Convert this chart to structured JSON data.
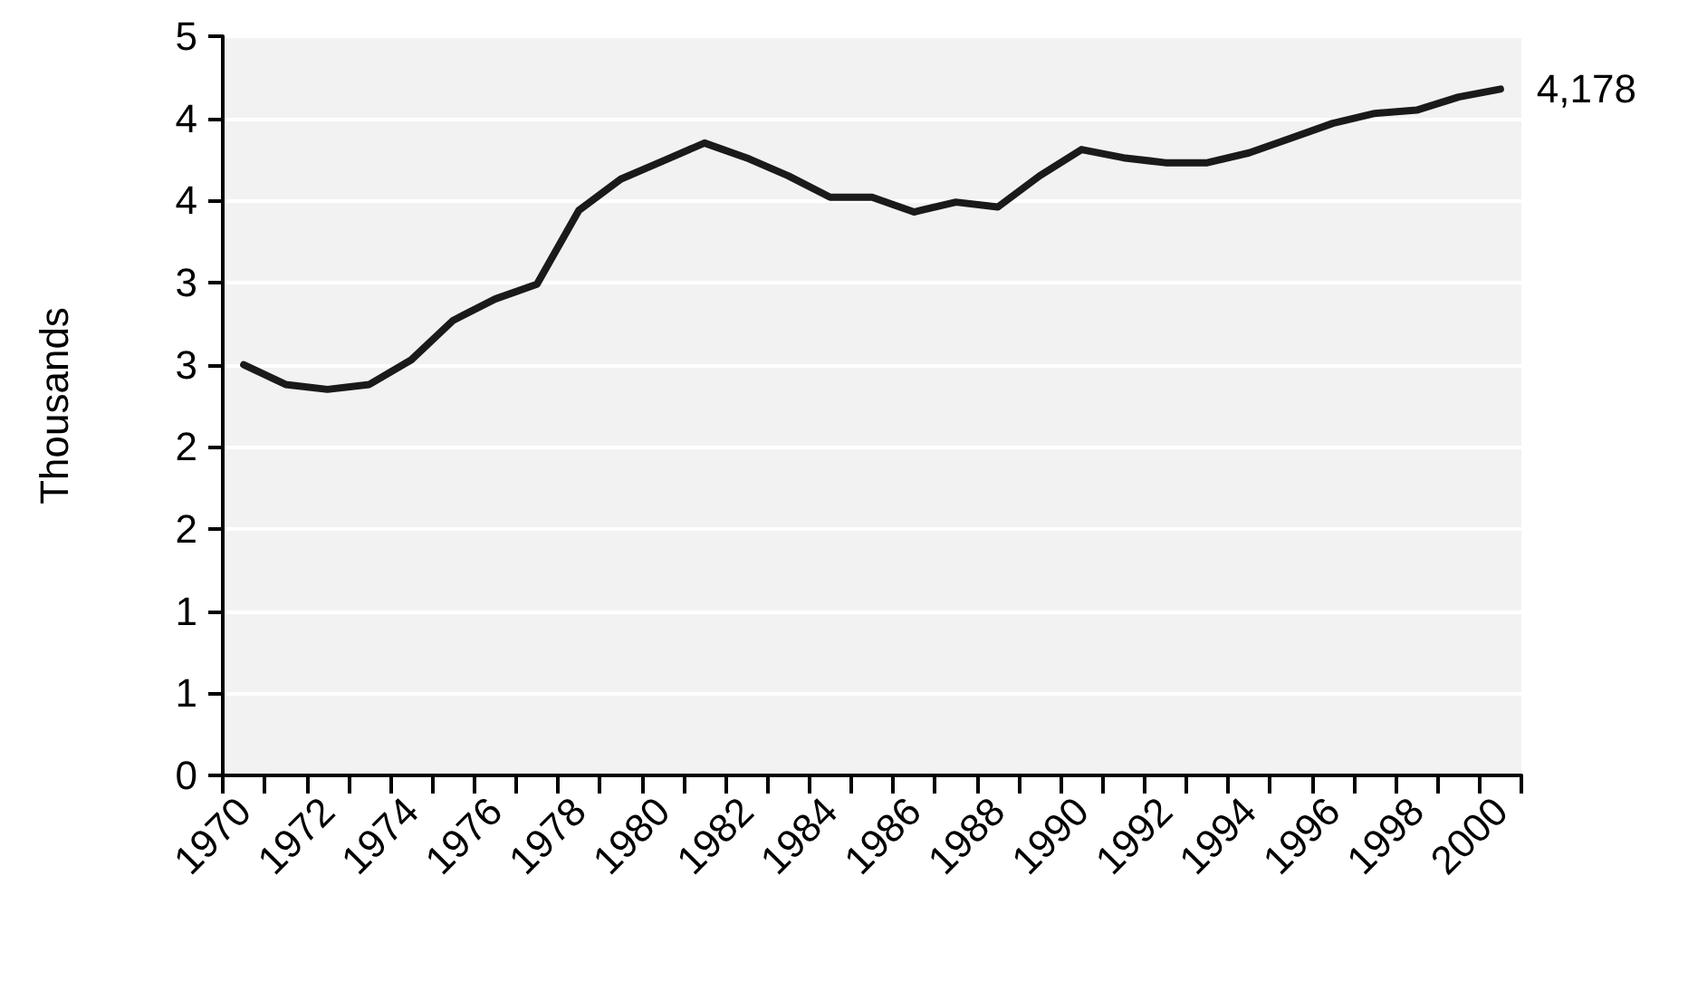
{
  "chart_data": {
    "type": "line",
    "ylabel": "Thousands",
    "categories": [
      "1970",
      null,
      "1972",
      null,
      "1974",
      null,
      "1976",
      null,
      "1978",
      null,
      "1980",
      null,
      "1982",
      null,
      "1984",
      null,
      "1986",
      null,
      "1988",
      null,
      "1990",
      null,
      "1992",
      null,
      "1994",
      null,
      "1996",
      null,
      "1998",
      null,
      "2000"
    ],
    "values": [
      2.5,
      2.38,
      2.35,
      2.38,
      2.53,
      2.77,
      2.9,
      2.99,
      3.44,
      3.63,
      3.74,
      3.85,
      3.76,
      3.65,
      3.52,
      3.52,
      3.43,
      3.49,
      3.46,
      3.65,
      3.81,
      3.76,
      3.73,
      3.73,
      3.79,
      3.88,
      3.97,
      4.03,
      4.05,
      4.13,
      4.178
    ],
    "annotations": [
      {
        "text": "4,178",
        "x": "2000",
        "y": 4.178
      }
    ],
    "color": "#1a1a1a",
    "marker": "none",
    "ylim": [
      0,
      4.5
    ],
    "yticks": [
      0,
      {
        "value": 0.5,
        "label": "1"
      },
      1,
      {
        "value": 1.5,
        "label": "2"
      },
      2,
      {
        "value": 2.5,
        "label": "3"
      },
      3,
      {
        "value": 3.5,
        "label": "4"
      },
      4,
      {
        "value": 4.5,
        "label": "5"
      }
    ],
    "grid": "y"
  }
}
